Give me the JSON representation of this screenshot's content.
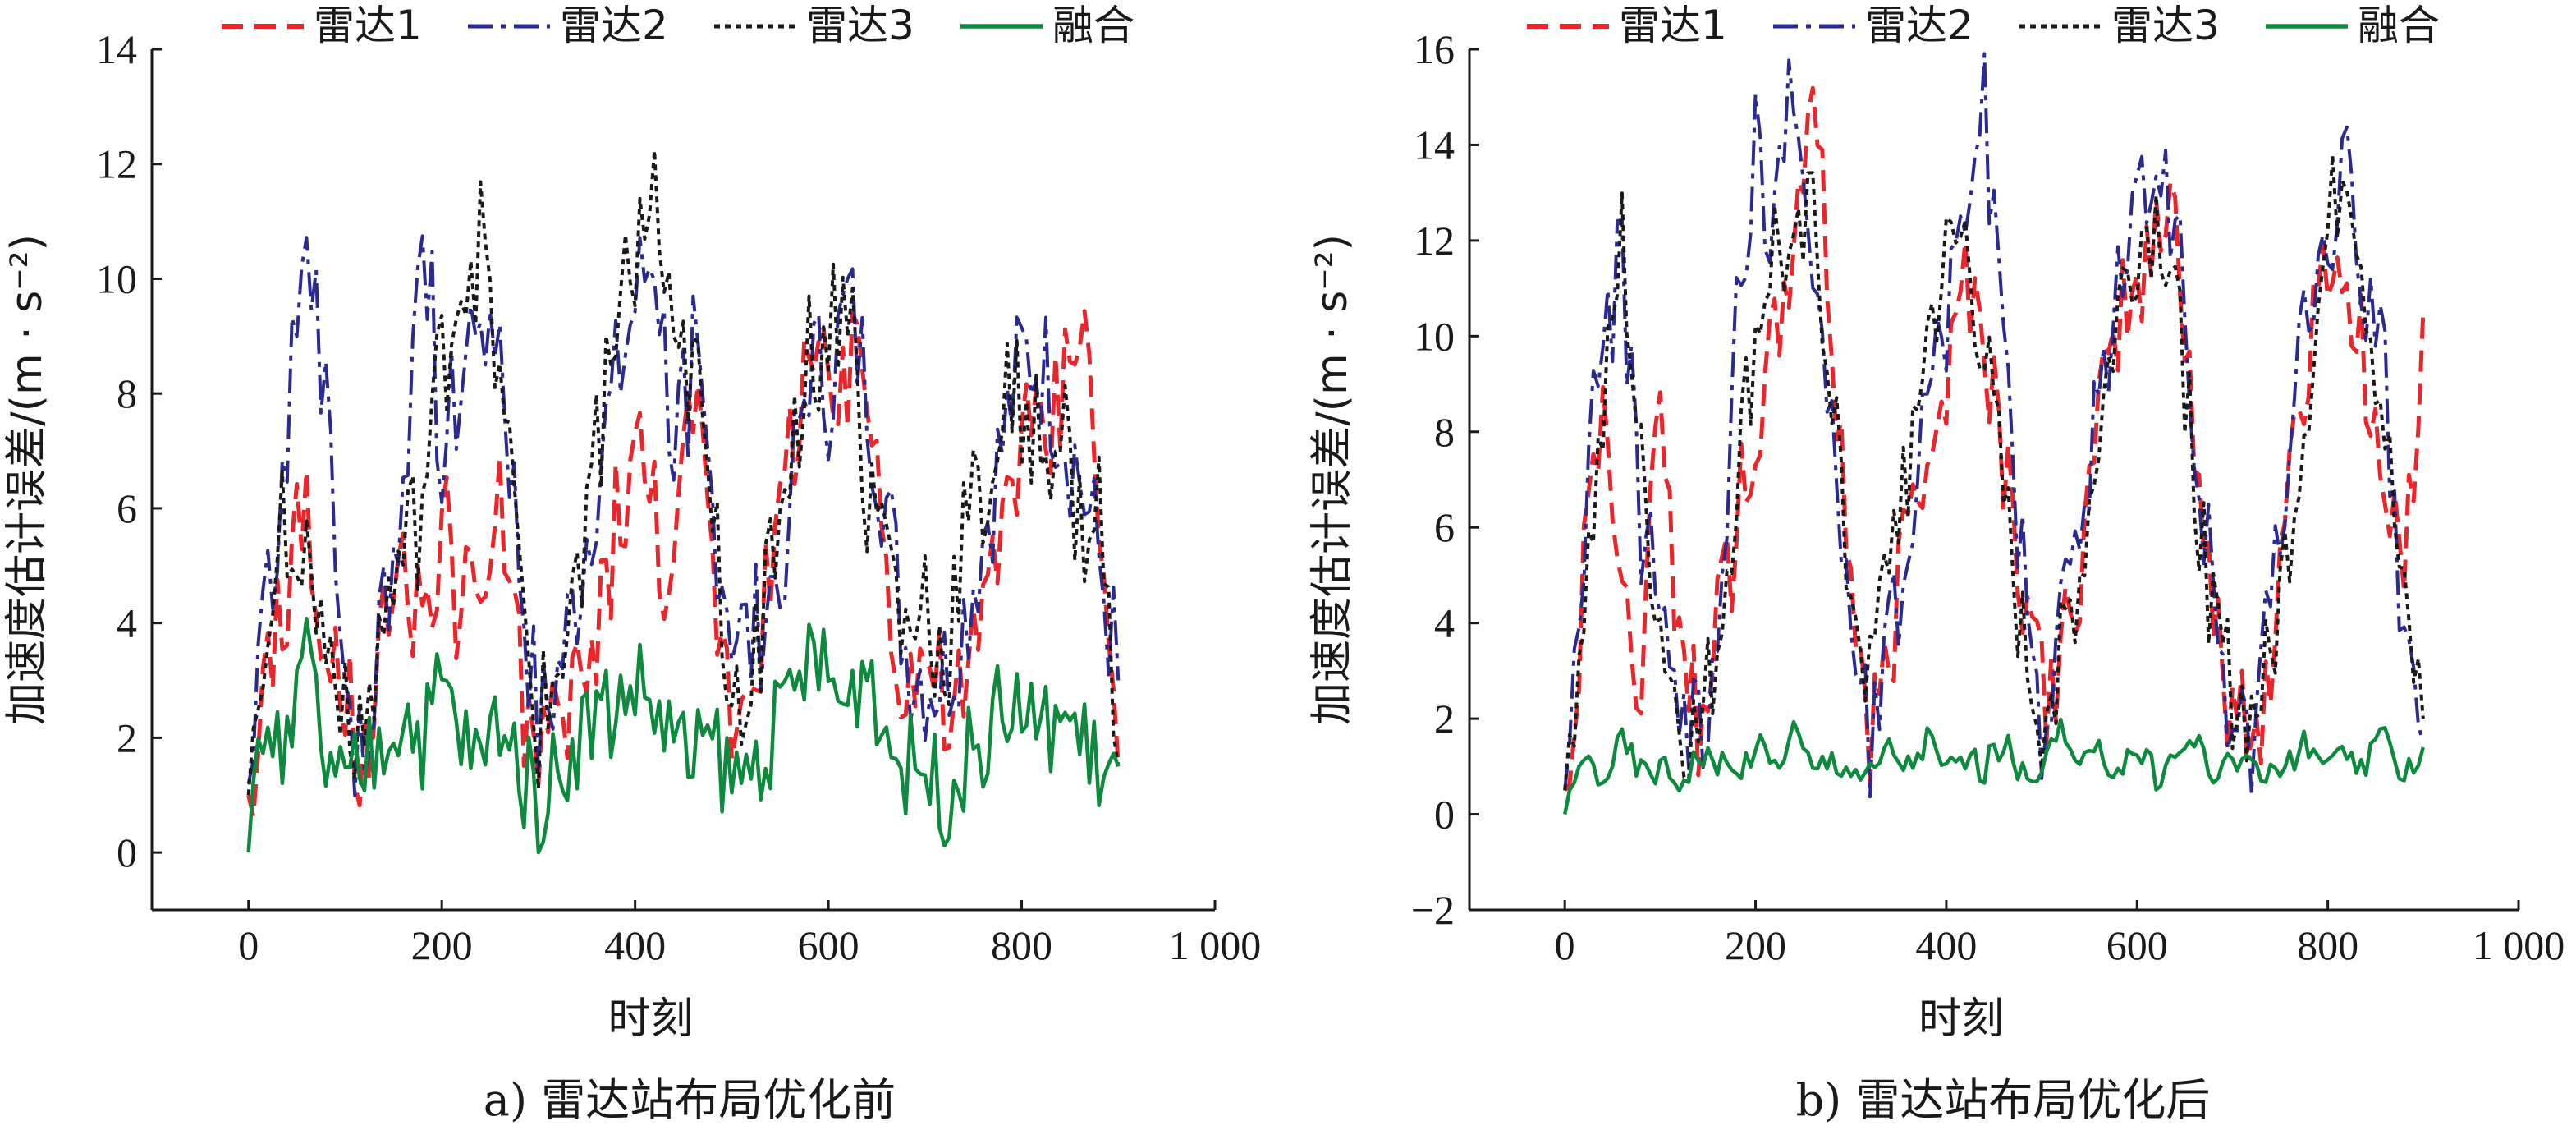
{
  "chart_data": [
    {
      "type": "line",
      "caption": "a) 雷达站布局优化前",
      "xlabel": "时刻",
      "ylabel": "加速度估计误差/(m · s⁻²)",
      "xlim": [
        -100,
        1000
      ],
      "ylim": [
        -1,
        14
      ],
      "xticks": [
        0,
        200,
        400,
        600,
        800,
        1000
      ],
      "xtick_labels": [
        "0",
        "200",
        "400",
        "600",
        "800",
        "1 000"
      ],
      "yticks": [
        0,
        2,
        4,
        6,
        8,
        10,
        12,
        14
      ],
      "ytick_labels": [
        "0",
        "2",
        "4",
        "6",
        "8",
        "10",
        "12",
        "14"
      ],
      "legend_position": "top",
      "series": [
        {
          "name": "雷达1",
          "color": "#e8262b",
          "style": "dashed",
          "x": [
            0,
            20,
            40,
            60,
            80,
            100,
            120,
            140,
            160,
            180,
            200,
            220,
            240,
            260,
            280,
            300,
            320,
            340,
            360,
            380,
            400,
            420,
            440,
            460,
            480,
            500,
            520,
            540,
            560,
            580,
            600,
            620,
            640,
            660,
            680,
            700,
            720,
            740,
            760,
            780,
            800,
            820,
            840,
            860,
            880,
            900
          ],
          "values": [
            1.0,
            3.0,
            4.5,
            6.0,
            3.0,
            2.5,
            1.5,
            3.5,
            4.5,
            3.5,
            6.0,
            4.0,
            4.5,
            6.0,
            3.0,
            1.5,
            2.0,
            3.0,
            3.5,
            6.0,
            7.0,
            6.0,
            4.5,
            8.0,
            5.0,
            2.5,
            3.5,
            4.5,
            7.0,
            9.0,
            7.5,
            8.0,
            8.5,
            5.0,
            3.0,
            3.5,
            2.5,
            2.5,
            4.0,
            6.0,
            7.5,
            7.0,
            8.0,
            10.0,
            6.0,
            1.5
          ]
        },
        {
          "name": "雷达2",
          "color": "#2b2a8f",
          "style": "dashdot",
          "x": [
            0,
            20,
            40,
            60,
            80,
            100,
            120,
            140,
            160,
            180,
            200,
            220,
            240,
            260,
            280,
            300,
            320,
            340,
            360,
            380,
            400,
            420,
            440,
            460,
            480,
            500,
            520,
            540,
            560,
            580,
            600,
            620,
            640,
            660,
            680,
            700,
            720,
            740,
            760,
            780,
            800,
            820,
            840,
            860,
            880,
            900
          ],
          "values": [
            1.2,
            4.0,
            7.5,
            10.0,
            8.5,
            3.0,
            1.0,
            4.5,
            6.0,
            11.5,
            7.0,
            8.0,
            10.0,
            9.0,
            5.0,
            2.0,
            3.0,
            4.5,
            6.5,
            8.0,
            9.5,
            10.5,
            7.0,
            8.5,
            6.0,
            4.0,
            3.5,
            4.5,
            6.0,
            8.5,
            8.0,
            9.5,
            8.0,
            6.0,
            3.5,
            3.0,
            3.0,
            4.0,
            5.5,
            7.0,
            8.5,
            8.5,
            7.5,
            6.5,
            5.0,
            3.0
          ]
        },
        {
          "name": "雷达3",
          "color": "#1a1a1a",
          "style": "dotted",
          "x": [
            0,
            20,
            40,
            60,
            80,
            100,
            120,
            140,
            160,
            180,
            200,
            220,
            240,
            260,
            280,
            300,
            320,
            340,
            360,
            380,
            400,
            420,
            440,
            460,
            480,
            500,
            520,
            540,
            560,
            580,
            600,
            620,
            640,
            660,
            680,
            700,
            720,
            740,
            760,
            780,
            800,
            820,
            840,
            860,
            880,
            900
          ],
          "values": [
            1.0,
            4.5,
            6.0,
            5.0,
            3.5,
            3.0,
            2.0,
            4.0,
            5.0,
            6.0,
            8.5,
            10.0,
            10.5,
            9.0,
            4.5,
            2.0,
            3.0,
            5.0,
            7.0,
            9.5,
            10.0,
            11.5,
            8.0,
            8.5,
            5.5,
            3.0,
            3.0,
            5.0,
            7.0,
            8.5,
            9.0,
            10.0,
            6.0,
            5.5,
            3.5,
            4.5,
            3.0,
            5.5,
            6.0,
            7.5,
            8.0,
            7.0,
            7.5,
            5.5,
            6.0,
            1.5
          ]
        },
        {
          "name": "融合",
          "color": "#0e8a3f",
          "style": "solid",
          "x": [
            0,
            20,
            40,
            60,
            80,
            100,
            120,
            140,
            160,
            180,
            200,
            220,
            240,
            260,
            280,
            300,
            320,
            340,
            360,
            380,
            400,
            420,
            440,
            460,
            480,
            500,
            520,
            540,
            560,
            580,
            600,
            620,
            640,
            660,
            680,
            700,
            720,
            740,
            760,
            780,
            800,
            820,
            840,
            860,
            880,
            900
          ],
          "values": [
            0.0,
            2.5,
            1.5,
            3.5,
            1.5,
            1.0,
            1.5,
            2.0,
            2.5,
            2.0,
            3.0,
            2.0,
            1.5,
            2.5,
            1.5,
            0.8,
            1.5,
            2.0,
            2.5,
            2.5,
            3.0,
            2.5,
            2.0,
            1.5,
            2.0,
            1.2,
            1.5,
            2.0,
            2.5,
            3.5,
            3.0,
            2.5,
            3.5,
            2.0,
            1.5,
            1.5,
            1.0,
            1.5,
            2.0,
            2.5,
            2.5,
            2.0,
            2.5,
            2.0,
            1.5,
            1.5
          ]
        }
      ]
    },
    {
      "type": "line",
      "caption": "b) 雷达站布局优化后",
      "xlabel": "时刻",
      "ylabel": "加速度估计误差/(m · s⁻²)",
      "xlim": [
        -100,
        1000
      ],
      "ylim": [
        -2,
        16
      ],
      "xticks": [
        0,
        200,
        400,
        600,
        800,
        1000
      ],
      "xtick_labels": [
        "0",
        "200",
        "400",
        "600",
        "800",
        "1 000"
      ],
      "yticks": [
        -2,
        0,
        2,
        4,
        6,
        8,
        10,
        12,
        14,
        16
      ],
      "ytick_labels": [
        "−2",
        "0",
        "2",
        "4",
        "6",
        "8",
        "10",
        "12",
        "14",
        "16"
      ],
      "legend_position": "top",
      "series": [
        {
          "name": "雷达1",
          "color": "#e8262b",
          "style": "dashed",
          "x": [
            0,
            20,
            40,
            60,
            80,
            100,
            120,
            140,
            160,
            180,
            200,
            220,
            240,
            260,
            280,
            300,
            320,
            340,
            360,
            380,
            400,
            420,
            440,
            460,
            480,
            500,
            520,
            540,
            560,
            580,
            600,
            620,
            640,
            660,
            680,
            700,
            720,
            740,
            760,
            780,
            800,
            820,
            840,
            860,
            880,
            900
          ],
          "values": [
            0.5,
            5.0,
            9.0,
            4.0,
            3.0,
            9.5,
            3.5,
            2.0,
            4.0,
            6.0,
            8.0,
            9.5,
            12.0,
            15.5,
            10.0,
            5.0,
            1.5,
            3.0,
            6.5,
            8.0,
            9.0,
            11.5,
            10.0,
            7.5,
            5.0,
            2.5,
            3.0,
            5.0,
            8.0,
            10.5,
            11.0,
            12.0,
            13.0,
            8.0,
            4.0,
            2.0,
            1.5,
            3.0,
            7.5,
            9.5,
            12.0,
            11.0,
            9.5,
            6.5,
            5.0,
            10.5
          ]
        },
        {
          "name": "雷达2",
          "color": "#2b2a8f",
          "style": "dashdot",
          "x": [
            0,
            20,
            40,
            60,
            80,
            100,
            120,
            140,
            160,
            180,
            200,
            220,
            240,
            260,
            280,
            300,
            320,
            340,
            360,
            380,
            400,
            420,
            440,
            460,
            480,
            500,
            520,
            540,
            560,
            580,
            600,
            620,
            640,
            660,
            680,
            700,
            720,
            740,
            760,
            780,
            800,
            820,
            840,
            860,
            880,
            900
          ],
          "values": [
            0.5,
            6.0,
            10.0,
            11.5,
            6.0,
            4.5,
            1.5,
            2.0,
            3.0,
            10.5,
            14.0,
            12.0,
            15.5,
            12.0,
            8.0,
            4.0,
            1.5,
            3.5,
            6.0,
            9.0,
            10.5,
            13.0,
            15.0,
            9.5,
            5.0,
            2.0,
            4.0,
            6.0,
            8.5,
            11.0,
            12.5,
            14.0,
            12.5,
            8.0,
            4.5,
            2.0,
            1.5,
            4.5,
            8.0,
            11.0,
            12.0,
            13.5,
            11.0,
            9.0,
            3.5,
            1.5
          ]
        },
        {
          "name": "雷达3",
          "color": "#1a1a1a",
          "style": "dotted",
          "x": [
            0,
            20,
            40,
            60,
            80,
            100,
            120,
            140,
            160,
            180,
            200,
            220,
            240,
            260,
            280,
            300,
            320,
            340,
            360,
            380,
            400,
            420,
            440,
            460,
            480,
            500,
            520,
            540,
            560,
            580,
            600,
            620,
            640,
            660,
            680,
            700,
            720,
            740,
            760,
            780,
            800,
            820,
            840,
            860,
            880,
            900
          ],
          "values": [
            0.5,
            4.5,
            8.0,
            12.0,
            7.0,
            4.0,
            2.0,
            1.5,
            3.5,
            7.0,
            10.0,
            12.0,
            11.0,
            12.5,
            9.0,
            5.0,
            2.5,
            5.5,
            7.5,
            10.0,
            11.5,
            12.0,
            9.5,
            6.5,
            3.5,
            2.0,
            3.5,
            5.0,
            8.0,
            10.5,
            12.0,
            12.5,
            11.5,
            7.0,
            4.0,
            2.5,
            2.0,
            3.0,
            6.0,
            9.0,
            12.0,
            14.0,
            11.0,
            8.0,
            4.0,
            2.0
          ]
        },
        {
          "name": "融合",
          "color": "#0e8a3f",
          "style": "solid",
          "x": [
            0,
            20,
            40,
            60,
            80,
            100,
            120,
            140,
            160,
            180,
            200,
            220,
            240,
            260,
            280,
            300,
            320,
            340,
            360,
            380,
            400,
            420,
            440,
            460,
            480,
            500,
            520,
            540,
            560,
            580,
            600,
            620,
            640,
            660,
            680,
            700,
            720,
            740,
            760,
            780,
            800,
            820,
            840,
            860,
            880,
            900
          ],
          "values": [
            0.0,
            1.2,
            0.8,
            1.5,
            0.9,
            1.0,
            0.7,
            1.3,
            1.0,
            0.8,
            1.5,
            1.0,
            1.8,
            0.9,
            1.2,
            1.0,
            0.8,
            1.4,
            1.0,
            1.6,
            0.9,
            1.2,
            1.0,
            1.5,
            0.8,
            1.1,
            1.7,
            0.9,
            1.2,
            1.0,
            1.4,
            0.8,
            1.2,
            1.6,
            0.9,
            1.0,
            1.3,
            0.8,
            1.1,
            1.5,
            0.9,
            1.2,
            1.0,
            1.6,
            0.9,
            1.4
          ]
        }
      ]
    }
  ]
}
